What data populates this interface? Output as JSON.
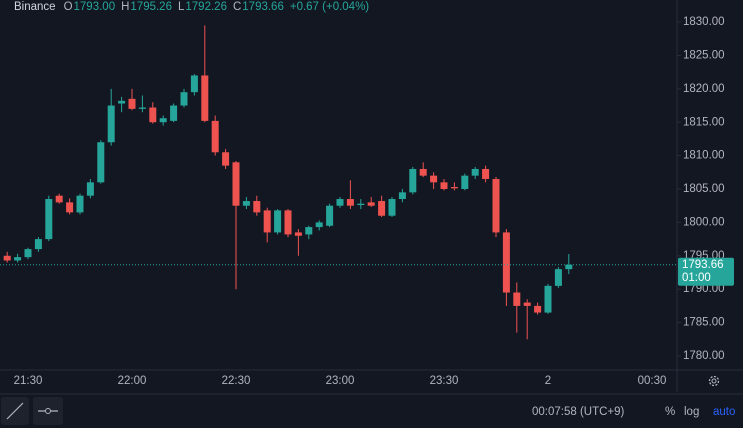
{
  "chart_data": {
    "type": "candlestick",
    "exchange": "Binance",
    "legend": [
      {
        "key": "O",
        "text": "1793.00"
      },
      {
        "key": "H",
        "text": "1795.26"
      },
      {
        "key": "L",
        "text": "1792.26"
      },
      {
        "key": "C",
        "text": "1793.66"
      }
    ],
    "change": "+0.67 (+0.04%)",
    "countdown": "01:00",
    "categories": [
      null,
      null,
      "21:30",
      null,
      null,
      null,
      null,
      null,
      null,
      null,
      null,
      null,
      "22:00",
      null,
      null,
      null,
      null,
      null,
      null,
      null,
      null,
      null,
      "22:30",
      null,
      null,
      null,
      null,
      null,
      null,
      null,
      null,
      null,
      "23:00",
      null,
      null,
      null,
      null,
      null,
      null,
      null,
      null,
      null,
      "23:30",
      null,
      null,
      null,
      null,
      null,
      null,
      null,
      null,
      null,
      "2",
      null,
      null,
      null,
      null,
      null,
      null,
      null,
      null,
      null,
      "00:30"
    ],
    "open": [
      1795.0,
      1794.3,
      1794.8,
      1796.0,
      1797.5,
      1804.0,
      1803.0,
      1801.5,
      1804.0,
      1806.0,
      1812.0,
      1817.8,
      1818.5,
      1817.0,
      1817.2,
      1815.0,
      1815.2,
      1817.5,
      1819.5,
      1822.0,
      1815.2,
      1810.5,
      1809.0,
      1802.5,
      1803.2,
      1801.8,
      1798.5,
      1801.8,
      1798.5,
      1798.2,
      1799.3,
      1799.5,
      1802.5,
      1803.5,
      1802.6,
      1803.0,
      1803.2,
      1801.0,
      1803.5,
      1804.5,
      1808.0,
      1807.0,
      1806.0,
      1805.3,
      1805.0,
      1807.0,
      1808.0,
      1806.5,
      1798.5,
      1789.5,
      1788.0,
      1787.5,
      1786.5,
      1790.5,
      1793.0,
      null,
      null,
      null,
      null,
      null,
      null,
      null,
      null
    ],
    "high": [
      1795.6,
      1795.3,
      1796.2,
      1797.8,
      1804.0,
      1804.3,
      1803.6,
      1804.3,
      1806.5,
      1812.3,
      1820.0,
      1818.8,
      1820.0,
      1819.0,
      1818.0,
      1816.0,
      1817.8,
      1820.0,
      1822.2,
      1829.5,
      1816.0,
      1811.0,
      1809.2,
      1803.8,
      1804.0,
      1802.2,
      1802.0,
      1802.0,
      1799.0,
      1799.5,
      1800.3,
      1802.8,
      1803.8,
      1806.3,
      1803.5,
      1803.8,
      1804.0,
      1803.8,
      1805.0,
      1808.3,
      1809.0,
      1807.5,
      1806.5,
      1806.0,
      1807.3,
      1808.3,
      1808.5,
      1806.8,
      1799.0,
      1791.0,
      1788.5,
      1788.0,
      1790.8,
      1793.3,
      1795.26,
      null,
      null,
      null,
      null,
      null,
      null,
      null,
      null
    ],
    "low": [
      1794.0,
      1794.0,
      1794.5,
      1795.6,
      1797.2,
      1802.8,
      1801.2,
      1801.2,
      1803.6,
      1805.8,
      1811.5,
      1816.5,
      1816.8,
      1816.5,
      1814.8,
      1814.5,
      1815.0,
      1817.2,
      1819.0,
      1815.0,
      1810.0,
      1808.0,
      1790.0,
      1802.0,
      1801.0,
      1797.0,
      1798.2,
      1797.8,
      1795.0,
      1797.5,
      1798.8,
      1799.3,
      1802.2,
      1802.0,
      1802.0,
      1802.3,
      1800.8,
      1800.8,
      1803.0,
      1804.2,
      1806.8,
      1805.0,
      1804.8,
      1804.8,
      1804.8,
      1806.5,
      1806.0,
      1797.8,
      1787.5,
      1783.5,
      1782.5,
      1786.2,
      1786.3,
      1790.2,
      1792.26,
      null,
      null,
      null,
      null,
      null,
      null,
      null,
      null
    ],
    "close": [
      1794.3,
      1794.8,
      1796.0,
      1797.5,
      1803.5,
      1803.0,
      1801.5,
      1804.0,
      1806.0,
      1812.0,
      1817.5,
      1818.2,
      1817.0,
      1817.2,
      1815.0,
      1815.6,
      1817.5,
      1819.5,
      1822.0,
      1815.2,
      1810.5,
      1808.5,
      1802.5,
      1803.2,
      1801.5,
      1798.5,
      1801.8,
      1798.2,
      1798.0,
      1799.3,
      1800.0,
      1802.5,
      1803.5,
      1802.5,
      1802.8,
      1802.5,
      1801.0,
      1803.5,
      1804.5,
      1808.0,
      1807.0,
      1806.0,
      1805.0,
      1805.1,
      1807.0,
      1808.0,
      1806.5,
      1798.5,
      1789.5,
      1787.5,
      1787.5,
      1786.5,
      1790.5,
      1793.0,
      1793.66,
      null,
      null,
      null,
      null,
      null,
      null,
      null,
      null
    ],
    "up_color": "#26a69a",
    "down_color": "#ef5350",
    "ylim": [
      1777.9,
      1833.3
    ],
    "yticks": [
      {
        "value": 1780,
        "label": "1780.00"
      },
      {
        "value": 1785,
        "label": "1785.00"
      },
      {
        "value": 1790,
        "label": "1790.00"
      },
      {
        "value": 1795,
        "label": "1795.00"
      },
      {
        "value": 1800,
        "label": "1800.00"
      },
      {
        "value": 1805,
        "label": "1805.00"
      },
      {
        "value": 1810,
        "label": "1810.00"
      },
      {
        "value": 1815,
        "label": "1815.00"
      },
      {
        "value": 1820,
        "label": "1820.00"
      },
      {
        "value": 1825,
        "label": "1825.00"
      },
      {
        "value": 1830,
        "label": "1830.00"
      }
    ],
    "grid": false
  },
  "toolbar": {
    "clock": "00:07:58 (UTC+9)",
    "buttons": [
      "%",
      "log",
      "auto"
    ]
  }
}
